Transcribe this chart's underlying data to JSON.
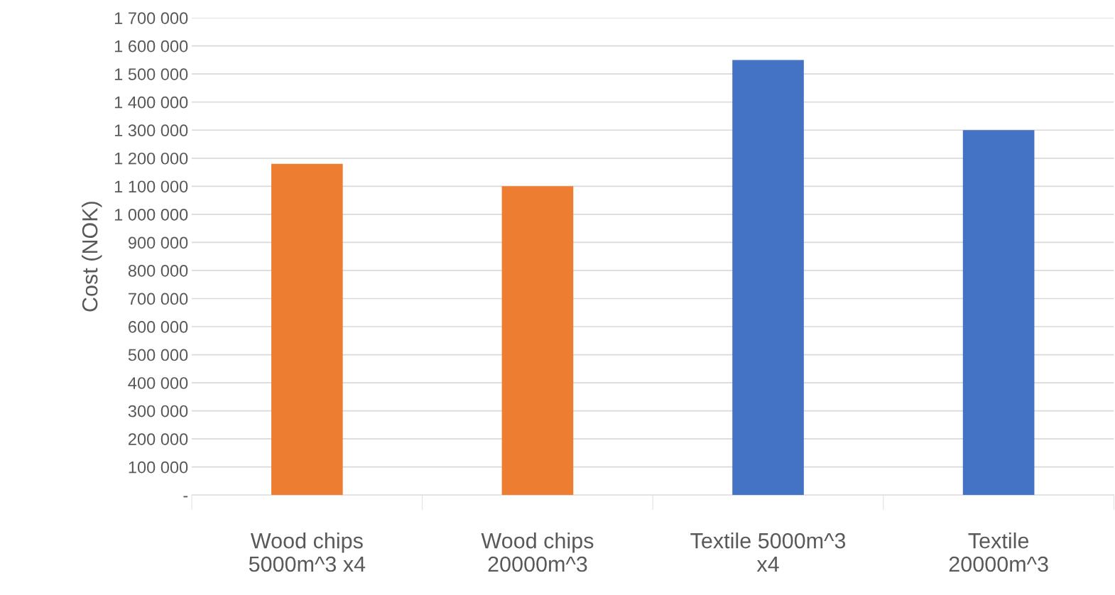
{
  "chart_data": {
    "type": "bar",
    "ylabel": "Cost (NOK)",
    "categories": [
      "Wood chips\n5000m^3 x4",
      "Wood chips\n20000m^3",
      "Textile 5000m^3\nx4",
      "Textile\n20000m^3"
    ],
    "values": [
      1180000,
      1100000,
      1550000,
      1300000
    ],
    "colors": [
      "#ed7d31",
      "#ed7d31",
      "#4472c4",
      "#4472c4"
    ],
    "ylim": [
      0,
      1700000
    ],
    "yticks": [
      {
        "value": 0,
        "label": "-"
      },
      {
        "value": 100000,
        "label": "100 000"
      },
      {
        "value": 200000,
        "label": "200 000"
      },
      {
        "value": 300000,
        "label": "300 000"
      },
      {
        "value": 400000,
        "label": "400 000"
      },
      {
        "value": 500000,
        "label": "500 000"
      },
      {
        "value": 600000,
        "label": "600 000"
      },
      {
        "value": 700000,
        "label": "700 000"
      },
      {
        "value": 800000,
        "label": "800 000"
      },
      {
        "value": 900000,
        "label": "900 000"
      },
      {
        "value": 1000000,
        "label": "1 000 000"
      },
      {
        "value": 1100000,
        "label": "1 100 000"
      },
      {
        "value": 1200000,
        "label": "1 200 000"
      },
      {
        "value": 1300000,
        "label": "1 300 000"
      },
      {
        "value": 1400000,
        "label": "1 400 000"
      },
      {
        "value": 1500000,
        "label": "1 500 000"
      },
      {
        "value": 1600000,
        "label": "1 600 000"
      },
      {
        "value": 1700000,
        "label": "1 700 000"
      }
    ],
    "grid": "y"
  }
}
